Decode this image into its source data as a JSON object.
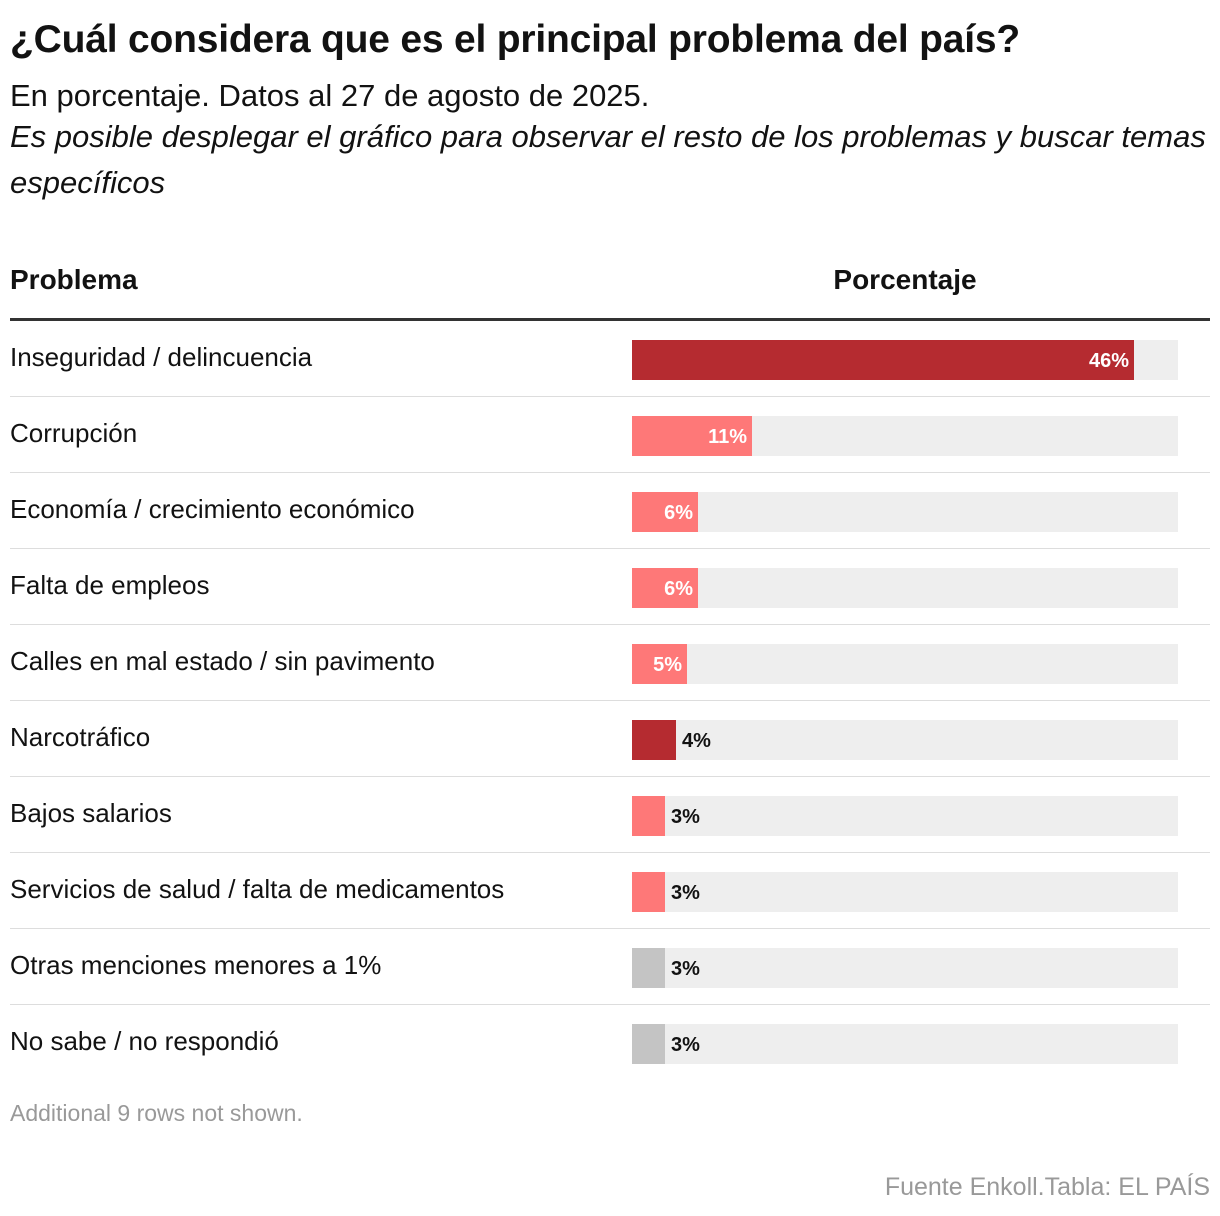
{
  "title": "¿Cuál considera que es el principal problema del país?",
  "subtitle": "En porcentaje. Datos al 27 de agosto de 2025.",
  "note": "Es posible desplegar el gráfico para observar el resto de los problemas y buscar temas específicos",
  "table": {
    "col_problem": "Problema",
    "col_percentage": "Porcentaje"
  },
  "footnote": "Additional 9 rows not shown.",
  "source": "Fuente Enkoll.Tabla: EL PAÍS",
  "colors": {
    "dark_red": "#b52b30",
    "light_red": "#fe7878",
    "gray": "#c4c4c4",
    "track": "#eeeeee"
  },
  "chart_data": {
    "type": "table",
    "xlim": [
      0,
      50
    ],
    "rows": [
      {
        "label": "Inseguridad / delincuencia",
        "value": 46,
        "value_label": "46%",
        "color": "dark_red"
      },
      {
        "label": "Corrupción",
        "value": 11,
        "value_label": "11%",
        "color": "light_red"
      },
      {
        "label": "Economía / crecimiento económico",
        "value": 6,
        "value_label": "6%",
        "color": "light_red"
      },
      {
        "label": "Falta de empleos",
        "value": 6,
        "value_label": "6%",
        "color": "light_red"
      },
      {
        "label": "Calles en mal estado / sin pavimento",
        "value": 5,
        "value_label": "5%",
        "color": "light_red"
      },
      {
        "label": "Narcotráfico",
        "value": 4,
        "value_label": "4%",
        "color": "dark_red"
      },
      {
        "label": "Bajos salarios",
        "value": 3,
        "value_label": "3%",
        "color": "light_red"
      },
      {
        "label": "Servicios de salud / falta de medicamentos",
        "value": 3,
        "value_label": "3%",
        "color": "light_red"
      },
      {
        "label": "Otras menciones menores a 1%",
        "value": 3,
        "value_label": "3%",
        "color": "gray"
      },
      {
        "label": "No sabe / no respondió",
        "value": 3,
        "value_label": "3%",
        "color": "gray"
      }
    ]
  }
}
